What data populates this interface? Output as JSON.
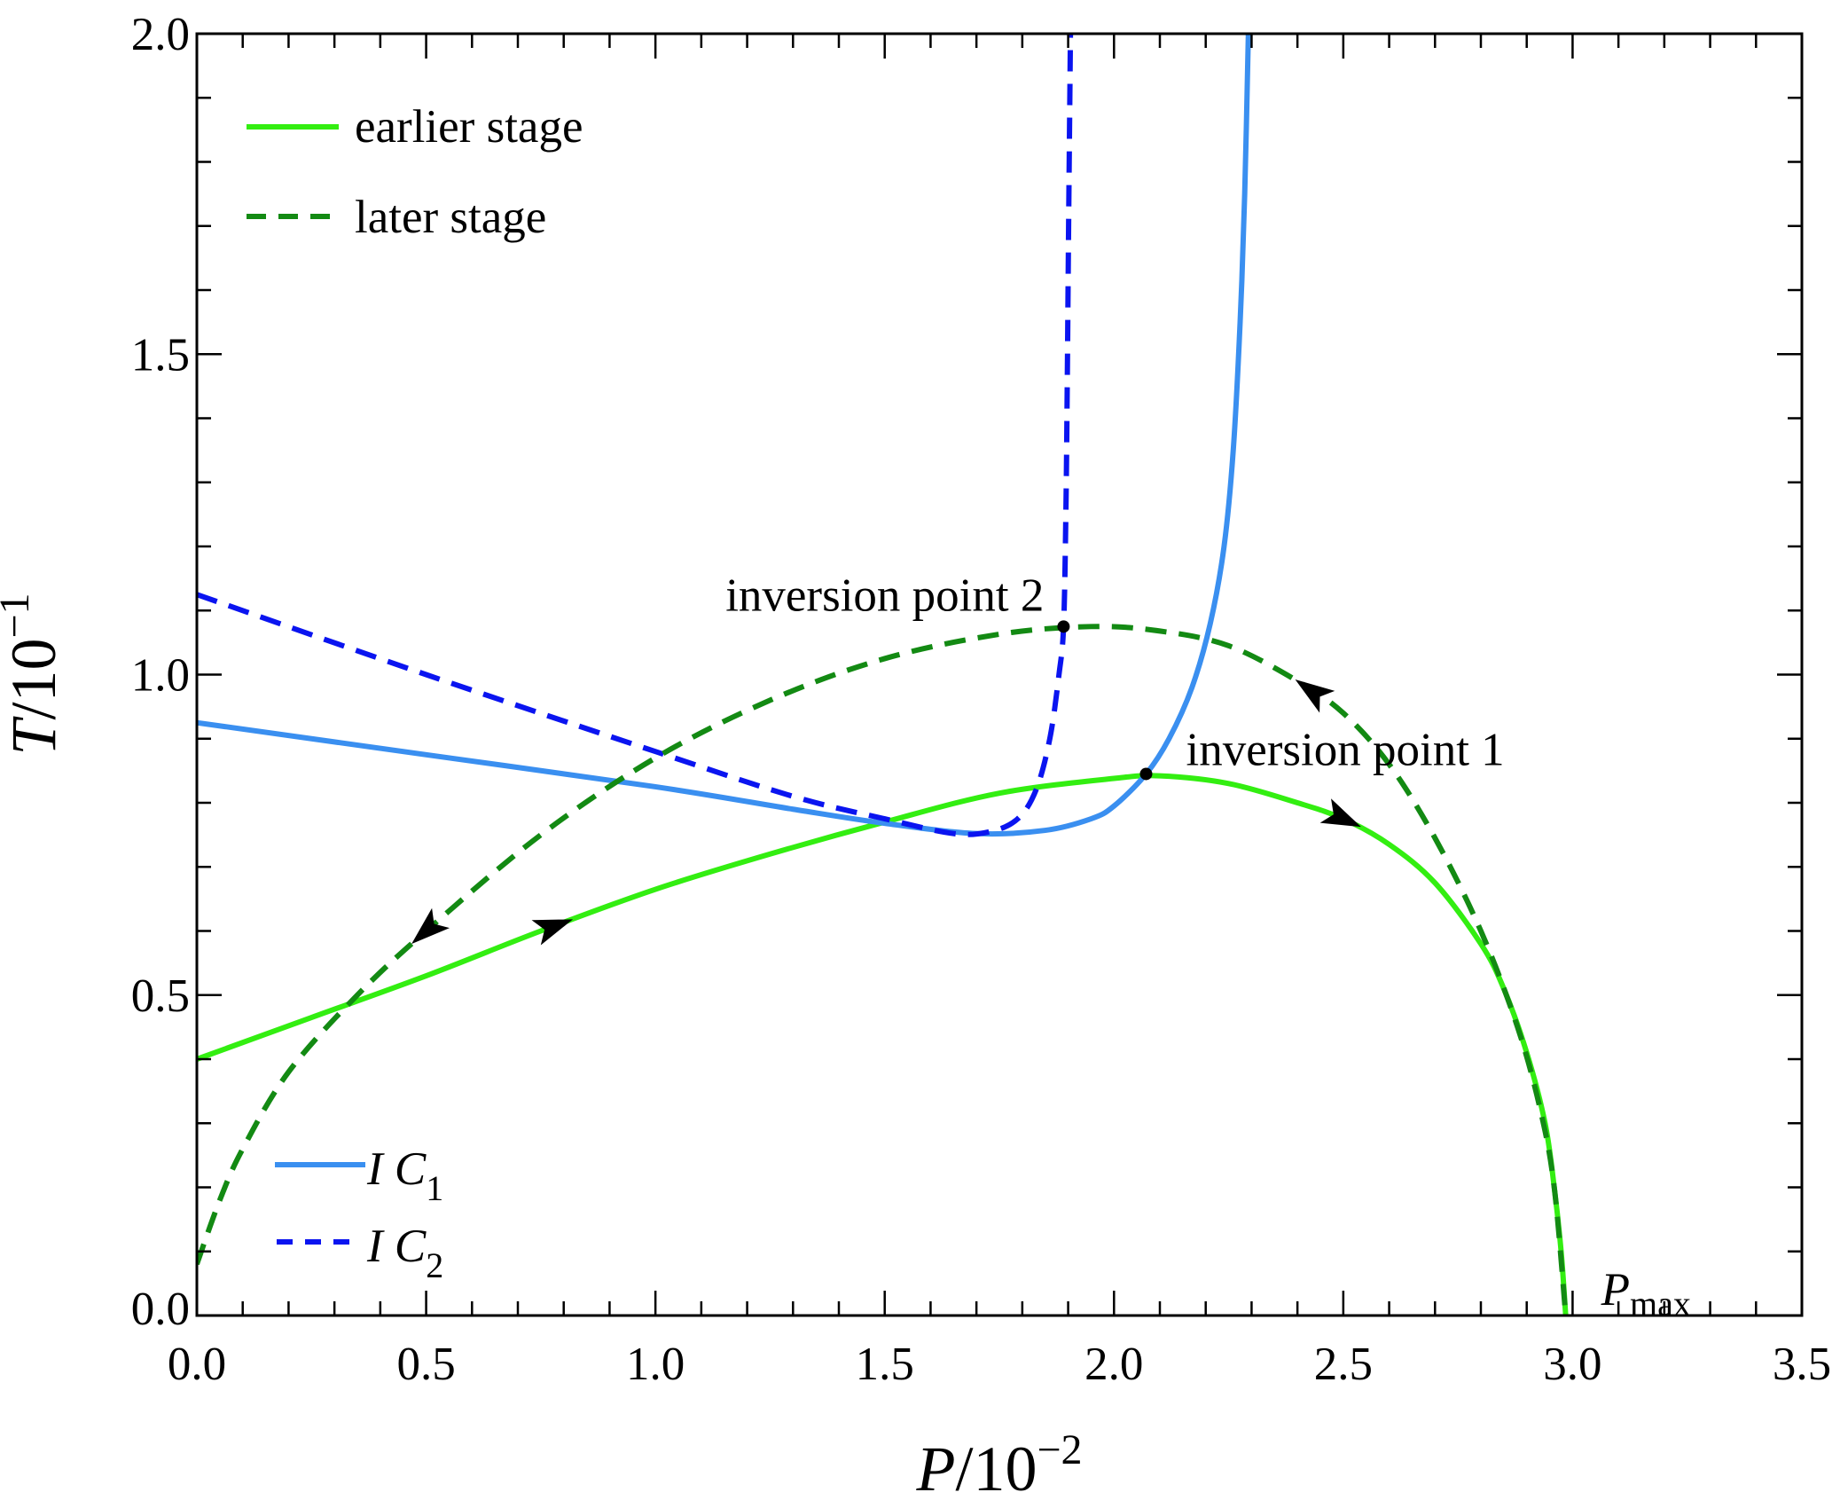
{
  "chart_data": {
    "type": "line",
    "xlabel": "P/10^-2",
    "xlabel_parts": {
      "var": "P",
      "base": "/10",
      "exp": "−2"
    },
    "ylabel_parts": {
      "var": "T",
      "base": "/10",
      "exp": "−1"
    },
    "xlim": [
      0,
      3.5
    ],
    "ylim": [
      0,
      2.0
    ],
    "x_ticks": [
      "0.0",
      "0.5",
      "1.0",
      "1.5",
      "2.0",
      "2.5",
      "3.0",
      "3.5"
    ],
    "y_ticks": [
      "0.0",
      "0.5",
      "1.0",
      "1.5",
      "2.0"
    ],
    "grid": false,
    "series": [
      {
        "name": "earlier stage",
        "color": "#33ee11",
        "dash": "solid",
        "points": [
          [
            0,
            0.4
          ],
          [
            0.25,
            0.465
          ],
          [
            0.5,
            0.53
          ],
          [
            0.75,
            0.6
          ],
          [
            1.0,
            0.665
          ],
          [
            1.25,
            0.72
          ],
          [
            1.5,
            0.77
          ],
          [
            1.75,
            0.815
          ],
          [
            2.0,
            0.838
          ],
          [
            2.1,
            0.842
          ],
          [
            2.25,
            0.83
          ],
          [
            2.4,
            0.8
          ],
          [
            2.5,
            0.775
          ],
          [
            2.6,
            0.735
          ],
          [
            2.7,
            0.675
          ],
          [
            2.8,
            0.58
          ],
          [
            2.85,
            0.51
          ],
          [
            2.9,
            0.41
          ],
          [
            2.94,
            0.3
          ],
          [
            2.96,
            0.2
          ],
          [
            2.975,
            0.1
          ],
          [
            2.985,
            0
          ]
        ]
      },
      {
        "name": "later stage",
        "color": "#138a13",
        "dash": "dashed",
        "points": [
          [
            0,
            0.08
          ],
          [
            0.05,
            0.18
          ],
          [
            0.1,
            0.26
          ],
          [
            0.2,
            0.38
          ],
          [
            0.35,
            0.5
          ],
          [
            0.5,
            0.6
          ],
          [
            0.75,
            0.75
          ],
          [
            1.0,
            0.87
          ],
          [
            1.25,
            0.96
          ],
          [
            1.5,
            1.025
          ],
          [
            1.75,
            1.063
          ],
          [
            1.95,
            1.075
          ],
          [
            2.1,
            1.068
          ],
          [
            2.25,
            1.045
          ],
          [
            2.4,
            0.99
          ],
          [
            2.5,
            0.94
          ],
          [
            2.6,
            0.86
          ],
          [
            2.7,
            0.745
          ],
          [
            2.8,
            0.6
          ],
          [
            2.88,
            0.45
          ],
          [
            2.93,
            0.32
          ],
          [
            2.96,
            0.2
          ],
          [
            2.985,
            0
          ]
        ]
      },
      {
        "name": "I C_1",
        "color": "#3a8ff0",
        "dash": "solid",
        "points": [
          [
            0,
            0.925
          ],
          [
            0.5,
            0.875
          ],
          [
            1.0,
            0.825
          ],
          [
            1.3,
            0.79
          ],
          [
            1.5,
            0.768
          ],
          [
            1.7,
            0.752
          ],
          [
            1.85,
            0.757
          ],
          [
            1.95,
            0.775
          ],
          [
            2.0,
            0.795
          ],
          [
            2.07,
            0.845
          ],
          [
            2.12,
            0.9
          ],
          [
            2.17,
            0.98
          ],
          [
            2.21,
            1.08
          ],
          [
            2.24,
            1.2
          ],
          [
            2.26,
            1.35
          ],
          [
            2.275,
            1.55
          ],
          [
            2.285,
            1.75
          ],
          [
            2.293,
            2.0
          ]
        ]
      },
      {
        "name": "I C_2",
        "color": "#0a14f0",
        "dash": "dashed",
        "points": [
          [
            0,
            1.125
          ],
          [
            0.5,
            1.0
          ],
          [
            1.0,
            0.88
          ],
          [
            1.3,
            0.81
          ],
          [
            1.5,
            0.775
          ],
          [
            1.65,
            0.752
          ],
          [
            1.73,
            0.755
          ],
          [
            1.79,
            0.775
          ],
          [
            1.83,
            0.82
          ],
          [
            1.86,
            0.9
          ],
          [
            1.88,
            1.0
          ],
          [
            1.89,
            1.075
          ],
          [
            1.895,
            1.25
          ],
          [
            1.898,
            1.45
          ],
          [
            1.901,
            1.7
          ],
          [
            1.905,
            2.0
          ]
        ]
      }
    ],
    "legend": [
      {
        "label": "earlier stage",
        "placement": "top-left"
      },
      {
        "label": "later stage",
        "placement": "top-left"
      },
      {
        "label_var": "I C",
        "sub": "1",
        "placement": "bottom-left"
      },
      {
        "label_var": "I C",
        "sub": "2",
        "placement": "bottom-left"
      }
    ],
    "annotations": [
      {
        "text": "inversion point 1",
        "x": 2.07,
        "y": 0.845
      },
      {
        "text": "inversion point 2",
        "x": 1.89,
        "y": 1.075
      },
      {
        "text_var": "P",
        "sub": "max",
        "x": 2.985,
        "y": 0
      }
    ],
    "arrows": [
      {
        "series": "earlier stage",
        "x": 0.78,
        "direction": "forward"
      },
      {
        "series": "earlier stage",
        "x": 2.5,
        "direction": "forward"
      },
      {
        "series": "later stage",
        "x": 0.5,
        "direction": "backward"
      },
      {
        "series": "later stage",
        "x": 2.43,
        "direction": "backward"
      }
    ]
  }
}
